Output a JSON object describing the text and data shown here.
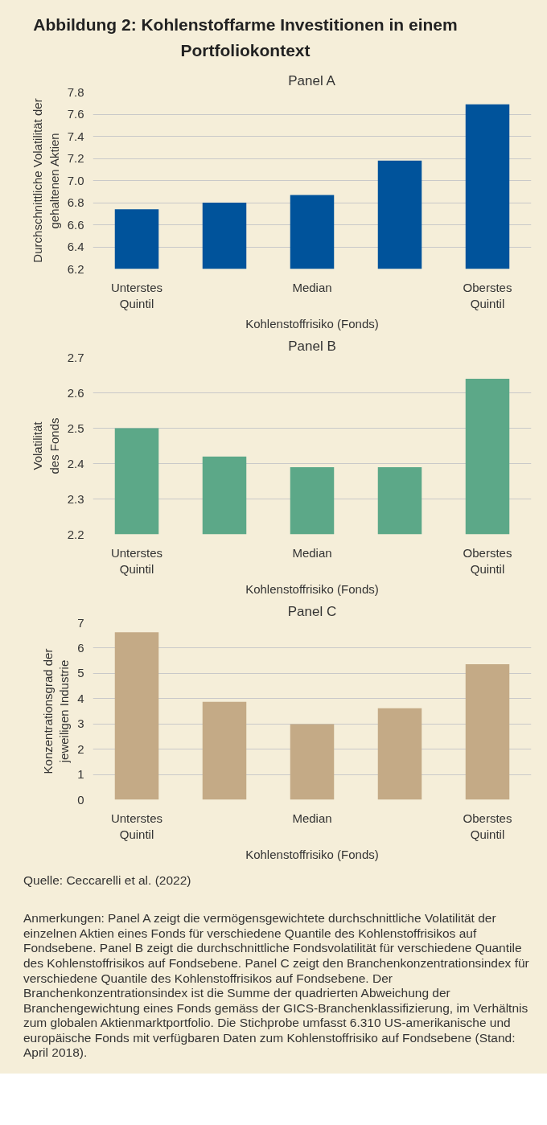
{
  "chart_data": [
    {
      "type": "bar",
      "title": "Abbildung 2: Kohlenstoffarme Investitionen in einem Portfoliokontext",
      "subtitle": "Panel A",
      "categories": [
        "Unterstes\nQuintil",
        null,
        "Median",
        null,
        "Oberstes\nQuintil"
      ],
      "values": [
        6.74,
        6.8,
        6.87,
        7.18,
        7.69
      ],
      "color": "#00539b",
      "xlabel": "Kohlenstoffrisiko (Fonds)",
      "ylabel": "Durchschnittliche Volatilität der\ngehaltenen Aktien",
      "ylim": [
        6.2,
        7.8
      ],
      "yticks": [
        {
          "value": 6.2,
          "label": "6.2"
        },
        {
          "value": 6.4,
          "label": "6.4"
        },
        {
          "value": 6.6,
          "label": "6.6"
        },
        {
          "value": 6.8,
          "label": "6.8"
        },
        {
          "value": 7.0,
          "label": "7.0"
        },
        {
          "value": 7.2,
          "label": "7.2"
        },
        {
          "value": 7.4,
          "label": "7.4"
        },
        {
          "value": 7.6,
          "label": "7.6"
        },
        {
          "value": 7.8,
          "label": "7.8"
        }
      ],
      "grid": "y"
    },
    {
      "type": "bar",
      "subtitle": "Panel B",
      "categories": [
        "Unterstes\nQuintil",
        null,
        "Median",
        null,
        "Oberstes\nQuintil"
      ],
      "values": [
        2.5,
        2.42,
        2.39,
        2.39,
        2.64
      ],
      "color": "#5ca888",
      "xlabel": "Kohlenstoffrisiko (Fonds)",
      "ylabel": "Volatilität\ndes Fonds",
      "ylim": [
        2.2,
        2.7
      ],
      "yticks": [
        2.2,
        2.3,
        2.4,
        2.5,
        2.6,
        2.7
      ],
      "grid": "y"
    },
    {
      "type": "bar",
      "subtitle": "Panel C",
      "categories": [
        "Unterstes\nQuintil",
        null,
        "Median",
        null,
        "Oberstes\nQuintil"
      ],
      "values": [
        6.63,
        3.87,
        2.99,
        3.62,
        5.36
      ],
      "color": "#c4aa86",
      "xlabel": "Kohlenstoffrisiko (Fonds)",
      "ylabel": "Konzentrationsgrad der\njeweiligen Industrie",
      "ylim": [
        0,
        7
      ],
      "yticks": [
        0,
        1,
        2,
        3,
        4,
        5,
        6,
        7
      ],
      "grid": "y",
      "annotations": [
        "Quelle: Ceccarelli et al. (2022)",
        "Anmerkungen: Panel A zeigt die vermögensgewichtete durchschnittliche Volatilität der einzelnen Aktien eines Fonds für verschiedene Quantile des Kohlenstoffrisikos auf Fondsebene. Panel B zeigt die durchschnittliche Fondsvolatilität für verschiedene Quantile des Kohlenstoffrisikos auf Fondsebene. Panel C zeigt den Branchenkonzentrationsindex für verschiedene Quantile des Kohlenstoffrisikos auf Fondsebene. Der Branchenkonzentrationsindex ist die Summe der quadrierten Abweichung der Branchengewichtung eines Fonds gemäss der GICS-Branchenklassifizierung, im Verhältnis zum globalen Aktienmarktportfolio. Die Stichprobe umfasst 6.310 US-amerikanische und europäische Fonds mit verfügbaren Daten zum Kohlenstoffrisiko auf Fondsebene (Stand: April 2018)."
      ]
    }
  ]
}
